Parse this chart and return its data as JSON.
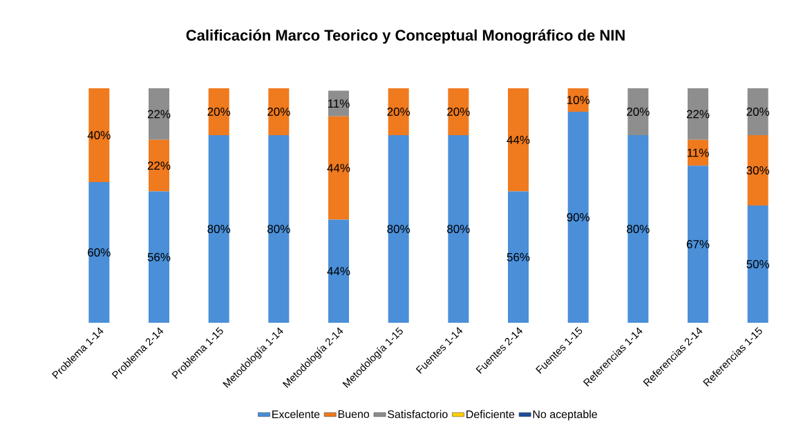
{
  "chart_data": {
    "type": "bar",
    "stacked": true,
    "title": "Calificación Marco Teorico y Conceptual Monográfico de NIN",
    "categories": [
      "Problema 1-14",
      "Problema 2-14",
      "Problema 1-15",
      "Metodología 1-14",
      "Metodología 2-14",
      "Metodología 1-15",
      "Fuentes 1-14",
      "Fuentes 2-14",
      "Fuentes 1-15",
      "Referencias 1-14",
      "Referencias 2-14",
      "Referencias 1-15"
    ],
    "series": [
      {
        "name": "Excelente",
        "color": "#4a8fd8",
        "values": [
          60,
          56,
          80,
          80,
          44,
          80,
          80,
          56,
          90,
          80,
          67,
          50
        ],
        "value_labels": [
          "60%",
          "56%",
          "80%",
          "80%",
          "44%",
          "80%",
          "80%",
          "56%",
          "90%",
          "80%",
          "67%",
          "50%"
        ]
      },
      {
        "name": "Bueno",
        "color": "#f07a1e",
        "values": [
          40,
          22,
          20,
          20,
          44,
          20,
          20,
          44,
          10,
          0,
          11,
          30
        ],
        "value_labels": [
          "40%",
          "22%",
          "20%",
          "20%",
          "44%",
          "20%",
          "20%",
          "44%",
          "10%",
          null,
          "11%",
          "30%"
        ]
      },
      {
        "name": "Satisfactorio",
        "color": "#8e8e8e",
        "values": [
          0,
          22,
          0,
          0,
          11,
          0,
          0,
          0,
          0,
          20,
          22,
          20
        ],
        "value_labels": [
          null,
          "22%",
          null,
          null,
          "11%",
          null,
          null,
          null,
          null,
          "20%",
          "22%",
          "20%"
        ]
      },
      {
        "name": "Deficiente",
        "color": "#ffd000",
        "values": [
          0,
          0,
          0,
          0,
          0,
          0,
          0,
          0,
          0,
          0,
          0,
          0
        ]
      },
      {
        "name": "No aceptable",
        "color": "#1f4e9c",
        "values": [
          0,
          0,
          0,
          0,
          0,
          0,
          0,
          0,
          0,
          0,
          0,
          0
        ]
      }
    ],
    "legend": "bottom"
  }
}
